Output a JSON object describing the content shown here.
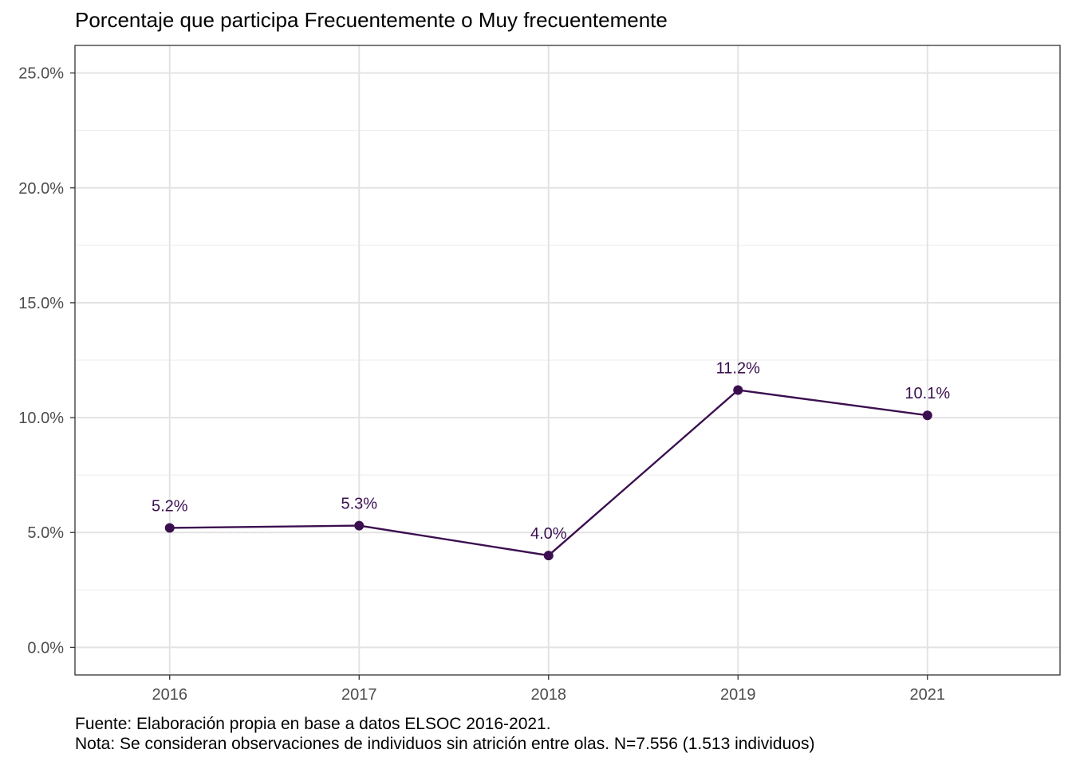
{
  "chart_data": {
    "type": "line",
    "title": "Porcentaje que participa Frecuentemente o Muy frecuentemente",
    "xlabel": "",
    "ylabel": "",
    "categories": [
      "2016",
      "2017",
      "2018",
      "2019",
      "2021"
    ],
    "series": [
      {
        "values": [
          5.2,
          5.3,
          4.0,
          11.2,
          10.1
        ],
        "labels": [
          "5.2%",
          "5.3%",
          "4.0%",
          "11.2%",
          "10.1%"
        ],
        "color": "#3b0f4f"
      }
    ],
    "yticks": [
      0,
      5,
      10,
      15,
      20,
      25
    ],
    "ytick_labels": [
      "0.0%",
      "5.0%",
      "10.0%",
      "15.0%",
      "20.0%",
      "25.0%"
    ],
    "ylim": [
      -1.2,
      26.2
    ],
    "grid": true
  },
  "caption": {
    "source": "Fuente: Elaboración propia en base a datos ELSOC 2016-2021.",
    "note": "Nota: Se consideran observaciones de individuos sin atrición entre olas. N=7.556 (1.513 individuos)"
  }
}
